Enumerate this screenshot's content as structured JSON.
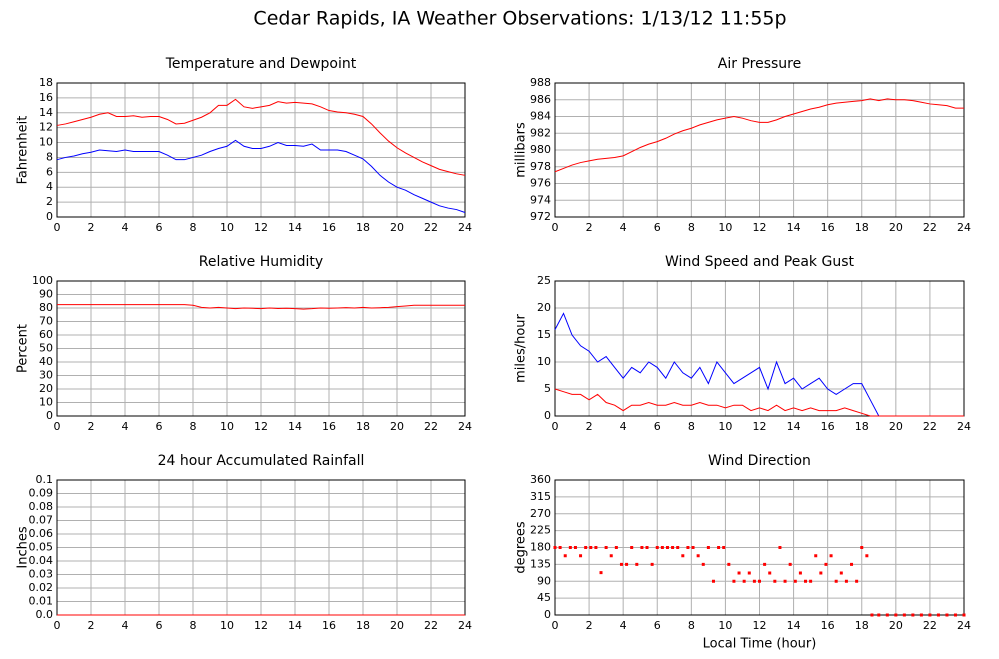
{
  "title": "Cedar Rapids, IA Weather Observations: 1/13/12 11:55p",
  "chart_data": [
    {
      "type": "line",
      "title": "Temperature and Dewpoint",
      "ylabel": "Fahrenheit",
      "x": [
        0,
        0.5,
        1,
        1.5,
        2,
        2.5,
        3,
        3.5,
        4,
        4.5,
        5,
        5.5,
        6,
        6.5,
        7,
        7.5,
        8,
        8.5,
        9,
        9.5,
        10,
        10.5,
        11,
        11.5,
        12,
        12.5,
        13,
        13.5,
        14,
        14.5,
        15,
        15.5,
        16,
        16.5,
        17,
        17.5,
        18,
        18.5,
        19,
        19.5,
        20,
        20.5,
        21,
        21.5,
        22,
        22.5,
        23,
        23.5,
        24
      ],
      "series": [
        {
          "color": "#ff0000",
          "values": [
            12.3,
            12.5,
            12.8,
            13.1,
            13.4,
            13.8,
            14.0,
            13.5,
            13.5,
            13.6,
            13.4,
            13.5,
            13.5,
            13.1,
            12.5,
            12.6,
            13.0,
            13.4,
            14.0,
            15.0,
            15.0,
            15.8,
            14.8,
            14.6,
            14.8,
            15.0,
            15.5,
            15.3,
            15.4,
            15.3,
            15.2,
            14.8,
            14.3,
            14.1,
            14.0,
            13.8,
            13.5,
            12.5,
            11.3,
            10.2,
            9.3,
            8.6,
            8.0,
            7.4,
            6.9,
            6.4,
            6.1,
            5.8,
            5.6
          ]
        },
        {
          "color": "#0000ff",
          "values": [
            7.7,
            8.0,
            8.2,
            8.5,
            8.7,
            9.0,
            8.9,
            8.8,
            9.0,
            8.8,
            8.8,
            8.8,
            8.8,
            8.3,
            7.7,
            7.7,
            8.0,
            8.3,
            8.8,
            9.2,
            9.5,
            10.3,
            9.5,
            9.2,
            9.2,
            9.5,
            10.0,
            9.6,
            9.6,
            9.5,
            9.8,
            9.0,
            9.0,
            9.0,
            8.8,
            8.3,
            7.8,
            6.8,
            5.6,
            4.7,
            4.0,
            3.6,
            3.0,
            2.5,
            2.0,
            1.5,
            1.2,
            1.0,
            0.6
          ]
        }
      ],
      "xlim": [
        0,
        24
      ],
      "xticks": [
        0,
        2,
        4,
        6,
        8,
        10,
        12,
        14,
        16,
        18,
        20,
        22,
        24
      ],
      "ylim": [
        0,
        18
      ],
      "yticks": [
        0,
        2,
        4,
        6,
        8,
        10,
        12,
        14,
        16,
        18
      ],
      "grid": true
    },
    {
      "type": "line",
      "title": "Air Pressure",
      "ylabel": "millibars",
      "x": [
        0,
        0.5,
        1,
        1.5,
        2,
        2.5,
        3,
        3.5,
        4,
        4.5,
        5,
        5.5,
        6,
        6.5,
        7,
        7.5,
        8,
        8.5,
        9,
        9.5,
        10,
        10.5,
        11,
        11.5,
        12,
        12.5,
        13,
        13.5,
        14,
        14.5,
        15,
        15.5,
        16,
        16.5,
        17,
        17.5,
        18,
        18.5,
        19,
        19.5,
        20,
        20.5,
        21,
        21.5,
        22,
        22.5,
        23,
        23.5,
        24
      ],
      "series": [
        {
          "color": "#ff0000",
          "values": [
            977.4,
            977.8,
            978.2,
            978.5,
            978.7,
            978.9,
            979.0,
            979.1,
            979.3,
            979.8,
            980.3,
            980.7,
            981.0,
            981.4,
            981.9,
            982.3,
            982.6,
            983.0,
            983.3,
            983.6,
            983.8,
            984.0,
            983.8,
            983.5,
            983.3,
            983.3,
            983.6,
            984.0,
            984.3,
            984.6,
            984.9,
            985.1,
            985.4,
            985.6,
            985.7,
            985.8,
            985.9,
            986.1,
            985.9,
            986.1,
            986.0,
            986.0,
            985.9,
            985.7,
            985.5,
            985.4,
            985.3,
            985.0,
            985.0
          ]
        }
      ],
      "xlim": [
        0,
        24
      ],
      "xticks": [
        0,
        2,
        4,
        6,
        8,
        10,
        12,
        14,
        16,
        18,
        20,
        22,
        24
      ],
      "ylim": [
        972,
        988
      ],
      "yticks": [
        972,
        974,
        976,
        978,
        980,
        982,
        984,
        986,
        988
      ],
      "grid": true
    },
    {
      "type": "line",
      "title": "Relative Humidity",
      "ylabel": "Percent",
      "x": [
        0,
        0.5,
        1,
        1.5,
        2,
        2.5,
        3,
        3.5,
        4,
        4.5,
        5,
        5.5,
        6,
        6.5,
        7,
        7.5,
        8,
        8.5,
        9,
        9.5,
        10,
        10.5,
        11,
        11.5,
        12,
        12.5,
        13,
        13.5,
        14,
        14.5,
        15,
        15.5,
        16,
        16.5,
        17,
        17.5,
        18,
        18.5,
        19,
        19.5,
        20,
        20.5,
        21,
        21.5,
        22,
        22.5,
        23,
        23.5,
        24
      ],
      "series": [
        {
          "color": "#ff0000",
          "values": [
            82.5,
            82.5,
            82.5,
            82.5,
            82.5,
            82.5,
            82.5,
            82.5,
            82.5,
            82.5,
            82.5,
            82.5,
            82.5,
            82.5,
            82.5,
            82.5,
            82,
            80.5,
            80,
            80.5,
            80,
            79.5,
            80,
            79.8,
            79.5,
            80,
            79.6,
            79.8,
            79.5,
            79.2,
            79.5,
            80,
            79.8,
            80,
            80.3,
            80,
            80.5,
            80,
            80.2,
            80.5,
            81,
            81.5,
            82,
            82,
            82,
            82,
            82,
            82,
            82
          ]
        }
      ],
      "xlim": [
        0,
        24
      ],
      "xticks": [
        0,
        2,
        4,
        6,
        8,
        10,
        12,
        14,
        16,
        18,
        20,
        22,
        24
      ],
      "ylim": [
        0,
        100
      ],
      "yticks": [
        0,
        10,
        20,
        30,
        40,
        50,
        60,
        70,
        80,
        90,
        100
      ],
      "grid": true
    },
    {
      "type": "line",
      "title": "Wind Speed and Peak Gust",
      "ylabel": "miles/hour",
      "x": [
        0,
        0.5,
        1,
        1.5,
        2,
        2.5,
        3,
        3.5,
        4,
        4.5,
        5,
        5.5,
        6,
        6.5,
        7,
        7.5,
        8,
        8.5,
        9,
        9.5,
        10,
        10.5,
        11,
        11.5,
        12,
        12.5,
        13,
        13.5,
        14,
        14.5,
        15,
        15.5,
        16,
        16.5,
        17,
        17.5,
        18,
        18.5,
        19,
        19.5,
        20,
        20.5,
        21,
        21.5,
        22,
        22.5,
        23,
        23.5,
        24
      ],
      "series": [
        {
          "color": "#0000ff",
          "values": [
            16,
            19,
            15,
            13,
            12,
            10,
            11,
            9,
            7,
            9,
            8,
            10,
            9,
            7,
            10,
            8,
            7,
            9,
            6,
            10,
            8,
            6,
            7,
            8,
            9,
            5,
            10,
            6,
            7,
            5,
            6,
            7,
            5,
            4,
            5,
            6,
            6,
            3,
            0,
            0,
            0,
            0,
            0,
            0,
            0,
            0,
            0,
            0,
            0
          ]
        },
        {
          "color": "#ff0000",
          "values": [
            5,
            4.5,
            4,
            4,
            3,
            4,
            2.5,
            2,
            1,
            2,
            2,
            2.5,
            2,
            2,
            2.5,
            2,
            2,
            2.5,
            2,
            2,
            1.5,
            2,
            2,
            1,
            1.5,
            1,
            2,
            1,
            1.5,
            1,
            1.5,
            1,
            1,
            1,
            1.5,
            1,
            0.5,
            0,
            0,
            0,
            0,
            0,
            0,
            0,
            0,
            0,
            0,
            0,
            0
          ]
        }
      ],
      "xlim": [
        0,
        24
      ],
      "xticks": [
        0,
        2,
        4,
        6,
        8,
        10,
        12,
        14,
        16,
        18,
        20,
        22,
        24
      ],
      "ylim": [
        0,
        25
      ],
      "yticks": [
        0,
        5,
        10,
        15,
        20,
        25
      ],
      "grid": true
    },
    {
      "type": "line",
      "title": "24 hour Accumulated Rainfall",
      "ylabel": "Inches",
      "x": [
        0,
        24
      ],
      "series": [
        {
          "color": "#ff0000",
          "values": [
            0,
            0
          ]
        }
      ],
      "xlim": [
        0,
        24
      ],
      "xticks": [
        0,
        2,
        4,
        6,
        8,
        10,
        12,
        14,
        16,
        18,
        20,
        22,
        24
      ],
      "ylim": [
        0,
        0.1
      ],
      "yticks": [
        {
          "value": 0,
          "label": "0.0"
        },
        0.01,
        0.02,
        0.03,
        0.04,
        0.05,
        0.06,
        0.07,
        0.08,
        0.09,
        0.1
      ],
      "grid": true
    },
    {
      "type": "scatter",
      "title": "Wind Direction",
      "ylabel": "degrees",
      "xlabel": "Local Time (hour)",
      "x": [
        0,
        0.3,
        0.6,
        0.9,
        1.2,
        1.5,
        1.8,
        2.1,
        2.4,
        2.7,
        3.0,
        3.3,
        3.6,
        3.9,
        4.2,
        4.5,
        4.8,
        5.1,
        5.4,
        5.7,
        6.0,
        6.3,
        6.6,
        6.9,
        7.2,
        7.5,
        7.8,
        8.1,
        8.4,
        8.7,
        9.0,
        9.3,
        9.6,
        9.9,
        10.2,
        10.5,
        10.8,
        11.1,
        11.4,
        11.7,
        12.0,
        12.3,
        12.6,
        12.9,
        13.2,
        13.5,
        13.8,
        14.1,
        14.4,
        14.7,
        15.0,
        15.3,
        15.6,
        15.9,
        16.2,
        16.5,
        16.8,
        17.1,
        17.4,
        17.7,
        18.0,
        18.3,
        18.6,
        19,
        19.5,
        20,
        20.5,
        21,
        21.5,
        22,
        22.5,
        23,
        23.5,
        24
      ],
      "series": [
        {
          "color": "#ff0000",
          "values": [
            180,
            180,
            158,
            180,
            180,
            158,
            180,
            180,
            180,
            113,
            180,
            158,
            180,
            135,
            135,
            180,
            135,
            180,
            180,
            135,
            180,
            180,
            180,
            180,
            180,
            158,
            180,
            180,
            158,
            135,
            180,
            90,
            180,
            180,
            135,
            90,
            112,
            90,
            112,
            90,
            90,
            135,
            112,
            90,
            180,
            90,
            135,
            90,
            112,
            90,
            90,
            158,
            112,
            135,
            158,
            90,
            112,
            90,
            135,
            90,
            180,
            158,
            0,
            0,
            0,
            0,
            0,
            0,
            0,
            0,
            0,
            0,
            0,
            0
          ]
        }
      ],
      "xlim": [
        0,
        24
      ],
      "xticks": [
        0,
        2,
        4,
        6,
        8,
        10,
        12,
        14,
        16,
        18,
        20,
        22,
        24
      ],
      "ylim": [
        0,
        360
      ],
      "yticks": [
        0,
        45,
        90,
        135,
        180,
        225,
        270,
        315,
        360
      ],
      "grid": true
    }
  ]
}
